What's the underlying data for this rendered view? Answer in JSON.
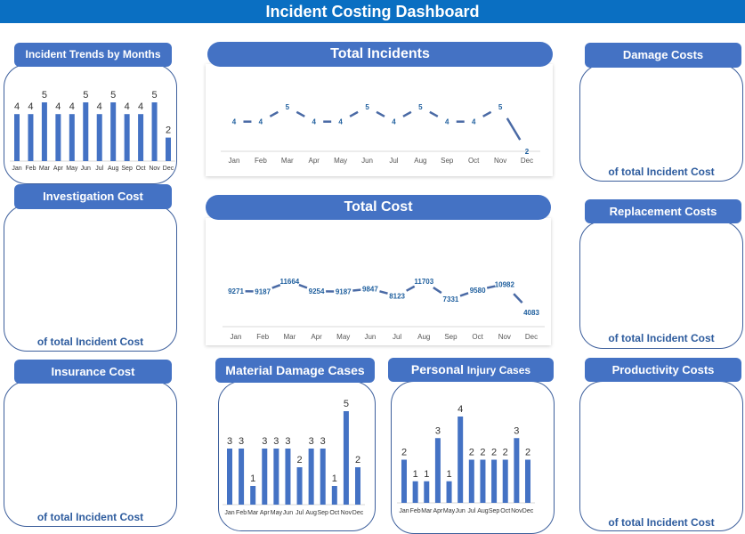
{
  "title": "Incident Costing Dashboard",
  "colors": {
    "header": "#4472c4",
    "title_bar": "#0a6fc2",
    "bar": "#4472c4",
    "line": "#4a6aa5"
  },
  "footer_text": "of total Incident Cost",
  "cards": {
    "investigation": "Investigation Cost",
    "insurance": "Insurance Cost",
    "damage": "Damage Costs",
    "replacement": "Replacement Costs",
    "productivity": "Productivity Costs"
  },
  "chart_data": [
    {
      "id": "incident-trends",
      "type": "bar",
      "title": "Incident Trends by Months",
      "categories": [
        "Jan",
        "Feb",
        "Mar",
        "Apr",
        "May",
        "Jun",
        "Jul",
        "Aug",
        "Sep",
        "Oct",
        "Nov",
        "Dec"
      ],
      "values": [
        4,
        4,
        5,
        4,
        4,
        5,
        4,
        5,
        4,
        4,
        5,
        2
      ]
    },
    {
      "id": "total-incidents",
      "type": "line",
      "title": "Total Incidents",
      "categories": [
        "Jan",
        "Feb",
        "Mar",
        "Apr",
        "May",
        "Jun",
        "Jul",
        "Aug",
        "Sep",
        "Oct",
        "Nov",
        "Dec"
      ],
      "values": [
        4,
        4,
        5,
        4,
        4,
        5,
        4,
        5,
        4,
        4,
        5,
        2
      ]
    },
    {
      "id": "total-cost",
      "type": "line",
      "title": "Total Cost",
      "categories": [
        "Jan",
        "Feb",
        "Mar",
        "Apr",
        "May",
        "Jun",
        "Jul",
        "Aug",
        "Sep",
        "Oct",
        "Nov",
        "Dec"
      ],
      "values": [
        9271,
        9187,
        11664,
        9254,
        9187,
        9847,
        8123,
        11703,
        7331,
        9580,
        10982,
        4083
      ]
    },
    {
      "id": "material-damage",
      "type": "bar",
      "title": "Material Damage Cases",
      "categories": [
        "Jan",
        "Feb",
        "Mar",
        "Apr",
        "May",
        "Jun",
        "Jul",
        "Aug",
        "Sep",
        "Oct",
        "Nov",
        "Dec"
      ],
      "values": [
        3,
        3,
        1,
        3,
        3,
        3,
        2,
        3,
        3,
        1,
        5,
        2
      ]
    },
    {
      "id": "personal-injury",
      "type": "bar",
      "title_bold": "Personal",
      "title_rest": "Injury Cases",
      "categories": [
        "Jan",
        "Feb",
        "Mar",
        "Apr",
        "May",
        "Jun",
        "Jul",
        "Aug",
        "Sep",
        "Oct",
        "Nov",
        "Dec"
      ],
      "values": [
        2,
        1,
        1,
        3,
        1,
        4,
        2,
        2,
        2,
        2,
        3,
        2
      ]
    }
  ]
}
